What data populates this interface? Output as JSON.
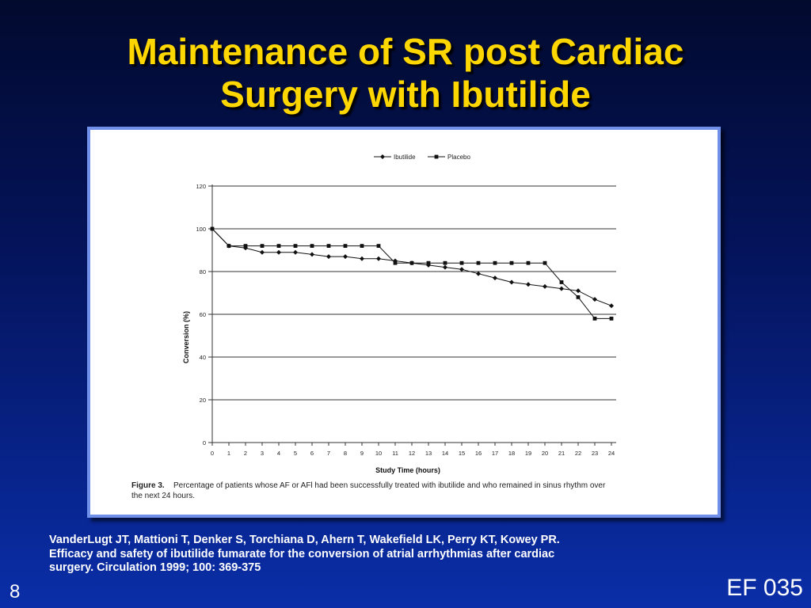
{
  "slide": {
    "title_line1": "Maintenance of SR post Cardiac",
    "title_line2": "Surgery with Ibutilide",
    "citation_line1": "VanderLugt JT, Mattioni T, Denker S, Torchiana D, Ahern T, Wakefield LK, Perry KT, Kowey PR.",
    "citation_line2": "Efficacy and safety of ibutilide fumarate for the conversion of atrial arrhythmias after cardiac",
    "citation_line3": "surgery.  Circulation 1999; 100: 369-375",
    "slide_number": "8",
    "code": "EF 035",
    "title_color": "#ffd700"
  },
  "chart_data": {
    "type": "line",
    "xlabel": "Study Time (hours)",
    "ylabel": "Conversion (%)",
    "x": [
      0,
      1,
      2,
      3,
      4,
      5,
      6,
      7,
      8,
      9,
      10,
      11,
      12,
      13,
      14,
      15,
      16,
      17,
      18,
      19,
      20,
      21,
      22,
      23,
      24
    ],
    "ylim": [
      0,
      120
    ],
    "yticks": [
      0,
      20,
      40,
      60,
      80,
      100,
      120
    ],
    "grid": "horizontal",
    "legend_position": "top-right",
    "series": [
      {
        "name": "Ibutilide",
        "marker": "diamond",
        "values": [
          100,
          92,
          91,
          89,
          89,
          89,
          88,
          87,
          87,
          86,
          86,
          85,
          84,
          83,
          82,
          81,
          79,
          77,
          75,
          74,
          73,
          72,
          71,
          67,
          64
        ]
      },
      {
        "name": "Placebo",
        "marker": "square",
        "values": [
          100,
          92,
          92,
          92,
          92,
          92,
          92,
          92,
          92,
          92,
          92,
          84,
          84,
          84,
          84,
          84,
          84,
          84,
          84,
          84,
          84,
          75,
          68,
          58,
          58
        ]
      }
    ],
    "caption_label": "Figure  3.",
    "caption_text": "Percentage of patients whose AF or AFl had been successfully treated with ibutilide and who remained in sinus rhythm over",
    "caption_text_line2": "the next 24 hours."
  }
}
